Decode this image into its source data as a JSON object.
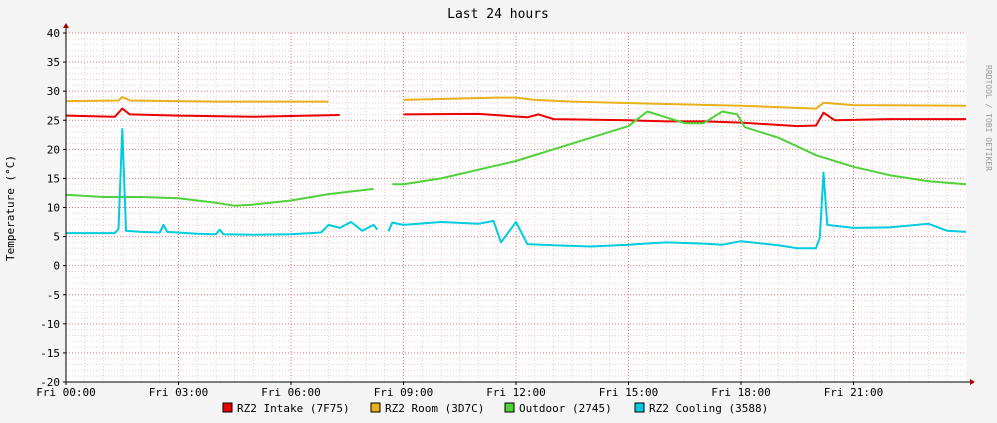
{
  "chart_data": {
    "type": "line",
    "title": "Last 24 hours",
    "ylabel": "Temperature (°C)",
    "watermark": "RRDTOOL / TOBI OETIKER",
    "ylim": [
      -20,
      40
    ],
    "xlim": [
      0,
      24
    ],
    "y_ticks": [
      40,
      35,
      30,
      25,
      20,
      15,
      10,
      5,
      0,
      -5,
      -10,
      -15,
      -20
    ],
    "x_ticks": [
      {
        "x": 0,
        "label": "Fri 00:00"
      },
      {
        "x": 3,
        "label": "Fri 03:00"
      },
      {
        "x": 6,
        "label": "Fri 06:00"
      },
      {
        "x": 9,
        "label": "Fri 09:00"
      },
      {
        "x": 12,
        "label": "Fri 12:00"
      },
      {
        "x": 15,
        "label": "Fri 15:00"
      },
      {
        "x": 18,
        "label": "Fri 18:00"
      },
      {
        "x": 21,
        "label": "Fri 21:00"
      }
    ],
    "grid": true,
    "legend_position": "bottom",
    "series": [
      {
        "name": "RZ2 Intake (7F75)",
        "color": "#ea0000",
        "points": [
          [
            0,
            25.8
          ],
          [
            1.3,
            25.6
          ],
          [
            1.5,
            27.0
          ],
          [
            1.7,
            26.0
          ],
          [
            3,
            25.8
          ],
          [
            5,
            25.6
          ],
          [
            7.3,
            25.9
          ],
          [
            8.5,
            26.0
          ],
          [
            9,
            26.0
          ],
          [
            11,
            26.1
          ],
          [
            12.3,
            25.5
          ],
          [
            12.6,
            26.0
          ],
          [
            13,
            25.2
          ],
          [
            15,
            25.0
          ],
          [
            16,
            24.8
          ],
          [
            17,
            24.8
          ],
          [
            18,
            24.6
          ],
          [
            19.5,
            24.0
          ],
          [
            20.0,
            24.1
          ],
          [
            20.2,
            26.3
          ],
          [
            20.5,
            25.0
          ],
          [
            22,
            25.2
          ],
          [
            24,
            25.2
          ]
        ]
      },
      {
        "name": "RZ2 Room (3D7C)",
        "color": "#e8b01c",
        "points": [
          [
            0,
            28.3
          ],
          [
            1.4,
            28.4
          ],
          [
            1.5,
            29.0
          ],
          [
            1.7,
            28.4
          ],
          [
            4,
            28.2
          ],
          [
            7,
            28.2
          ],
          [
            8.5,
            28.5
          ],
          [
            9,
            28.5
          ],
          [
            11.5,
            28.9
          ],
          [
            12.0,
            28.9
          ],
          [
            12.5,
            28.5
          ],
          [
            13.5,
            28.2
          ],
          [
            16,
            27.8
          ],
          [
            18,
            27.5
          ],
          [
            20.0,
            27.0
          ],
          [
            20.2,
            28.0
          ],
          [
            21,
            27.6
          ],
          [
            24,
            27.5
          ]
        ]
      },
      {
        "name": "Outdoor (2745)",
        "color": "#4fd13a",
        "points": [
          [
            0,
            12.2
          ],
          [
            1,
            11.8
          ],
          [
            2,
            11.8
          ],
          [
            3,
            11.6
          ],
          [
            4,
            10.8
          ],
          [
            4.5,
            10.3
          ],
          [
            5,
            10.5
          ],
          [
            6,
            11.2
          ],
          [
            7,
            12.3
          ],
          [
            8.2,
            13.2
          ],
          [
            8.7,
            14.0
          ],
          [
            9,
            14.0
          ],
          [
            10,
            15.0
          ],
          [
            11,
            16.5
          ],
          [
            12,
            18.0
          ],
          [
            13,
            20.0
          ],
          [
            14,
            22.0
          ],
          [
            15,
            24.0
          ],
          [
            15.5,
            26.5
          ],
          [
            16,
            25.5
          ],
          [
            16.5,
            24.5
          ],
          [
            17,
            24.5
          ],
          [
            17.5,
            26.5
          ],
          [
            17.9,
            26.0
          ],
          [
            18.1,
            23.8
          ],
          [
            19,
            22.0
          ],
          [
            20,
            19.0
          ],
          [
            21,
            17.0
          ],
          [
            22,
            15.5
          ],
          [
            23,
            14.5
          ],
          [
            24,
            14.0
          ]
        ]
      },
      {
        "name": "RZ2 Cooling (3588)",
        "color": "#00ccdd",
        "points": [
          [
            0,
            5.6
          ],
          [
            1.3,
            5.6
          ],
          [
            1.4,
            6.3
          ],
          [
            1.5,
            23.5
          ],
          [
            1.6,
            6.0
          ],
          [
            2,
            5.8
          ],
          [
            2.5,
            5.7
          ],
          [
            2.6,
            7.0
          ],
          [
            2.7,
            5.8
          ],
          [
            3.5,
            5.5
          ],
          [
            4,
            5.4
          ],
          [
            4.1,
            6.2
          ],
          [
            4.2,
            5.4
          ],
          [
            5,
            5.3
          ],
          [
            6,
            5.4
          ],
          [
            6.8,
            5.7
          ],
          [
            7,
            7.0
          ],
          [
            7.3,
            6.5
          ],
          [
            7.6,
            7.5
          ],
          [
            7.9,
            6.0
          ],
          [
            8.2,
            7.0
          ],
          [
            8.3,
            6.2
          ],
          [
            8.6,
            5.9
          ],
          [
            8.7,
            7.4
          ],
          [
            9,
            7.0
          ],
          [
            10,
            7.5
          ],
          [
            11,
            7.2
          ],
          [
            11.4,
            7.7
          ],
          [
            11.6,
            4.0
          ],
          [
            12,
            7.5
          ],
          [
            12.3,
            3.7
          ],
          [
            13,
            3.5
          ],
          [
            14,
            3.3
          ],
          [
            15,
            3.6
          ],
          [
            16,
            4.0
          ],
          [
            17,
            3.8
          ],
          [
            17.5,
            3.6
          ],
          [
            18,
            4.2
          ],
          [
            19,
            3.5
          ],
          [
            19.5,
            3.0
          ],
          [
            20.0,
            3.0
          ],
          [
            20.1,
            4.8
          ],
          [
            20.2,
            16.0
          ],
          [
            20.3,
            7.0
          ],
          [
            21,
            6.5
          ],
          [
            22,
            6.6
          ],
          [
            23,
            7.2
          ],
          [
            23.5,
            6.0
          ],
          [
            24,
            5.8
          ]
        ]
      }
    ],
    "gaps": [
      [
        8.35,
        8.55
      ]
    ]
  }
}
